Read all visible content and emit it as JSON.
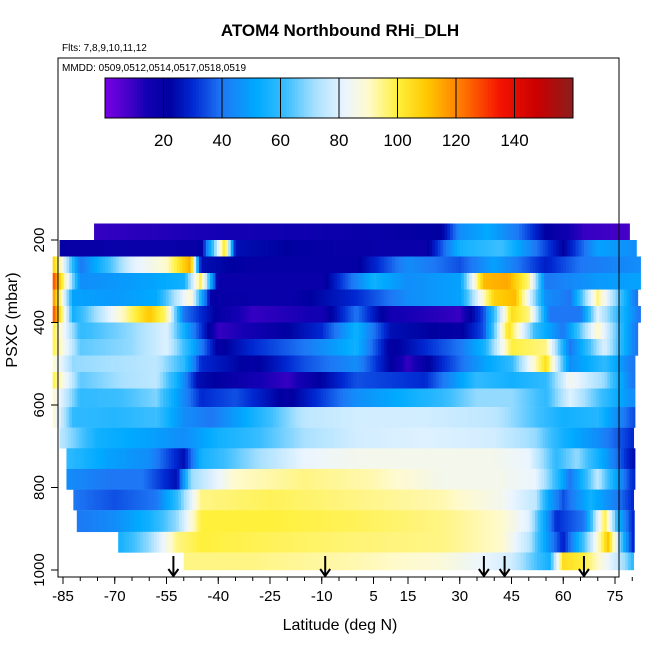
{
  "chart_data": {
    "type": "heatmap",
    "title": "ATOM4 Northbound RHi_DLH",
    "subtitle_flights": "Flts: 7,8,9,10,11,12",
    "subtitle_dates": "MMDD: 0509,0512,0514,0517,0518,0519",
    "xlabel": "Latitude (deg N)",
    "ylabel": "PSXC (mbar)",
    "xlim": [
      -88,
      84
    ],
    "ylim": [
      1010,
      110
    ],
    "x_ticks": [
      -85,
      -70,
      -55,
      -40,
      -25,
      -10,
      5,
      15,
      30,
      45,
      60,
      75
    ],
    "x_tick_labels": [
      "-85",
      "-70",
      "-55",
      "-40",
      "-25",
      "-10",
      "5",
      "15",
      "30",
      "45",
      "60",
      "75"
    ],
    "y_ticks": [
      200,
      400,
      600,
      800,
      1000
    ],
    "y_tick_labels": [
      "200",
      "400",
      "600",
      "800",
      "1000"
    ],
    "colorbar": {
      "range": [
        0,
        160
      ],
      "ticks": [
        20,
        40,
        60,
        80,
        100,
        120,
        140
      ],
      "tick_labels": [
        "20",
        "40",
        "60",
        "80",
        "100",
        "120",
        "140"
      ]
    },
    "arrow_latitudes": [
      -53,
      -9,
      37,
      43,
      66
    ],
    "layers": [
      {
        "p": 180,
        "xmin": -76,
        "xmax": 79,
        "knots": [
          [
            -76,
            10
          ],
          [
            -60,
            12
          ],
          [
            -30,
            15
          ],
          [
            0,
            18
          ],
          [
            25,
            22
          ],
          [
            30,
            45
          ],
          [
            38,
            52
          ],
          [
            47,
            40
          ],
          [
            55,
            22
          ],
          [
            66,
            10
          ],
          [
            79,
            8
          ]
        ]
      },
      {
        "p": 220,
        "xmin": -86,
        "xmax": 81,
        "knots": [
          [
            -86,
            20
          ],
          [
            -60,
            18
          ],
          [
            -45,
            20
          ],
          [
            -38,
            105
          ],
          [
            -35,
            25
          ],
          [
            -10,
            20
          ],
          [
            20,
            18
          ],
          [
            30,
            55
          ],
          [
            42,
            62
          ],
          [
            52,
            40
          ],
          [
            60,
            22
          ],
          [
            70,
            50
          ],
          [
            81,
            45
          ]
        ]
      },
      {
        "p": 260,
        "xmin": -88,
        "xmax": 82,
        "knots": [
          [
            -88,
            110
          ],
          [
            -80,
            40
          ],
          [
            -65,
            80
          ],
          [
            -55,
            90
          ],
          [
            -48,
            115
          ],
          [
            -45,
            25
          ],
          [
            -30,
            20
          ],
          [
            0,
            20
          ],
          [
            15,
            45
          ],
          [
            30,
            35
          ],
          [
            40,
            50
          ],
          [
            55,
            28
          ],
          [
            65,
            40
          ],
          [
            82,
            45
          ]
        ]
      },
      {
        "p": 300,
        "xmin": -88,
        "xmax": 82,
        "knots": [
          [
            -88,
            130
          ],
          [
            -80,
            45
          ],
          [
            -60,
            50
          ],
          [
            -50,
            55
          ],
          [
            -45,
            100
          ],
          [
            -40,
            18
          ],
          [
            -10,
            18
          ],
          [
            5,
            55
          ],
          [
            15,
            45
          ],
          [
            30,
            50
          ],
          [
            37,
            112
          ],
          [
            44,
            115
          ],
          [
            50,
            95
          ],
          [
            55,
            40
          ],
          [
            70,
            48
          ],
          [
            82,
            50
          ]
        ]
      },
      {
        "p": 340,
        "xmin": -88,
        "xmax": 81,
        "knots": [
          [
            -88,
            120
          ],
          [
            -82,
            50
          ],
          [
            -70,
            48
          ],
          [
            -58,
            52
          ],
          [
            -48,
            90
          ],
          [
            -42,
            20
          ],
          [
            -20,
            18
          ],
          [
            0,
            30
          ],
          [
            15,
            45
          ],
          [
            30,
            50
          ],
          [
            40,
            108
          ],
          [
            46,
            112
          ],
          [
            55,
            45
          ],
          [
            62,
            40
          ],
          [
            70,
            95
          ],
          [
            81,
            40
          ]
        ]
      },
      {
        "p": 380,
        "xmin": -88,
        "xmax": 82,
        "knots": [
          [
            -88,
            130
          ],
          [
            -82,
            55
          ],
          [
            -70,
            85
          ],
          [
            -60,
            110
          ],
          [
            -55,
            95
          ],
          [
            -50,
            40
          ],
          [
            -40,
            20
          ],
          [
            -30,
            10
          ],
          [
            -10,
            15
          ],
          [
            0,
            40
          ],
          [
            10,
            15
          ],
          [
            30,
            10
          ],
          [
            37,
            35
          ],
          [
            45,
            105
          ],
          [
            50,
            95
          ],
          [
            56,
            40
          ],
          [
            65,
            40
          ],
          [
            70,
            80
          ],
          [
            82,
            40
          ]
        ]
      },
      {
        "p": 420,
        "xmin": -88,
        "xmax": 81,
        "knots": [
          [
            -88,
            100
          ],
          [
            -80,
            60
          ],
          [
            -65,
            70
          ],
          [
            -55,
            80
          ],
          [
            -48,
            45
          ],
          [
            -40,
            10
          ],
          [
            -25,
            18
          ],
          [
            -10,
            30
          ],
          [
            0,
            55
          ],
          [
            10,
            25
          ],
          [
            30,
            20
          ],
          [
            37,
            35
          ],
          [
            44,
            105
          ],
          [
            52,
            60
          ],
          [
            60,
            40
          ],
          [
            70,
            90
          ],
          [
            81,
            40
          ]
        ]
      },
      {
        "p": 460,
        "xmin": -88,
        "xmax": 81,
        "knots": [
          [
            -88,
            100
          ],
          [
            -80,
            65
          ],
          [
            -65,
            70
          ],
          [
            -55,
            80
          ],
          [
            -48,
            55
          ],
          [
            -40,
            20
          ],
          [
            -30,
            30
          ],
          [
            -15,
            40
          ],
          [
            0,
            55
          ],
          [
            10,
            20
          ],
          [
            30,
            40
          ],
          [
            37,
            55
          ],
          [
            45,
            100
          ],
          [
            55,
            95
          ],
          [
            62,
            40
          ],
          [
            72,
            80
          ],
          [
            81,
            40
          ]
        ]
      },
      {
        "p": 500,
        "xmin": -88,
        "xmax": 80,
        "knots": [
          [
            -88,
            90
          ],
          [
            -82,
            70
          ],
          [
            -70,
            72
          ],
          [
            -58,
            75
          ],
          [
            -50,
            60
          ],
          [
            -45,
            30
          ],
          [
            -30,
            20
          ],
          [
            -15,
            35
          ],
          [
            0,
            45
          ],
          [
            15,
            10
          ],
          [
            25,
            30
          ],
          [
            37,
            50
          ],
          [
            45,
            60
          ],
          [
            55,
            105
          ],
          [
            62,
            45
          ],
          [
            72,
            60
          ],
          [
            80,
            40
          ]
        ]
      },
      {
        "p": 540,
        "xmin": -88,
        "xmax": 80,
        "knots": [
          [
            -88,
            100
          ],
          [
            -80,
            65
          ],
          [
            -68,
            72
          ],
          [
            -58,
            75
          ],
          [
            -52,
            55
          ],
          [
            -46,
            25
          ],
          [
            -35,
            18
          ],
          [
            -20,
            10
          ],
          [
            0,
            35
          ],
          [
            20,
            30
          ],
          [
            35,
            60
          ],
          [
            45,
            55
          ],
          [
            55,
            60
          ],
          [
            62,
            85
          ],
          [
            72,
            70
          ],
          [
            80,
            40
          ]
        ]
      },
      {
        "p": 580,
        "xmin": -88,
        "xmax": 80,
        "knots": [
          [
            -88,
            90
          ],
          [
            -80,
            60
          ],
          [
            -68,
            62
          ],
          [
            -58,
            68
          ],
          [
            -52,
            50
          ],
          [
            -45,
            30
          ],
          [
            -35,
            35
          ],
          [
            -20,
            20
          ],
          [
            0,
            45
          ],
          [
            25,
            60
          ],
          [
            35,
            70
          ],
          [
            45,
            70
          ],
          [
            55,
            60
          ],
          [
            62,
            80
          ],
          [
            72,
            60
          ],
          [
            80,
            45
          ]
        ]
      },
      {
        "p": 630,
        "xmin": -88,
        "xmax": 80,
        "knots": [
          [
            -88,
            90
          ],
          [
            -82,
            60
          ],
          [
            -70,
            58
          ],
          [
            -58,
            62
          ],
          [
            -50,
            45
          ],
          [
            -42,
            40
          ],
          [
            -30,
            55
          ],
          [
            -15,
            75
          ],
          [
            0,
            78
          ],
          [
            20,
            78
          ],
          [
            40,
            75
          ],
          [
            50,
            65
          ],
          [
            60,
            55
          ],
          [
            70,
            58
          ],
          [
            80,
            35
          ]
        ]
      },
      {
        "p": 680,
        "xmin": -86,
        "xmax": 80,
        "knots": [
          [
            -86,
            75
          ],
          [
            -75,
            55
          ],
          [
            -60,
            50
          ],
          [
            -50,
            45
          ],
          [
            -40,
            55
          ],
          [
            -30,
            60
          ],
          [
            -15,
            72
          ],
          [
            0,
            78
          ],
          [
            20,
            80
          ],
          [
            40,
            78
          ],
          [
            52,
            70
          ],
          [
            60,
            55
          ],
          [
            70,
            45
          ],
          [
            80,
            30
          ]
        ]
      },
      {
        "p": 730,
        "xmin": -84,
        "xmax": 80,
        "knots": [
          [
            -84,
            60
          ],
          [
            -72,
            50
          ],
          [
            -60,
            45
          ],
          [
            -50,
            25
          ],
          [
            -45,
            55
          ],
          [
            -30,
            70
          ],
          [
            -15,
            82
          ],
          [
            0,
            85
          ],
          [
            20,
            85
          ],
          [
            40,
            85
          ],
          [
            50,
            82
          ],
          [
            58,
            60
          ],
          [
            64,
            70
          ],
          [
            72,
            50
          ],
          [
            80,
            25
          ]
        ]
      },
      {
        "p": 780,
        "xmin": -84,
        "xmax": 80,
        "knots": [
          [
            -84,
            45
          ],
          [
            -72,
            40
          ],
          [
            -62,
            40
          ],
          [
            -52,
            25
          ],
          [
            -48,
            70
          ],
          [
            -35,
            90
          ],
          [
            -15,
            95
          ],
          [
            5,
            92
          ],
          [
            25,
            85
          ],
          [
            42,
            85
          ],
          [
            52,
            82
          ],
          [
            58,
            60
          ],
          [
            62,
            40
          ],
          [
            70,
            75
          ],
          [
            80,
            30
          ]
        ]
      },
      {
        "p": 830,
        "xmin": -82,
        "xmax": 80,
        "knots": [
          [
            -82,
            40
          ],
          [
            -70,
            35
          ],
          [
            -58,
            40
          ],
          [
            -52,
            60
          ],
          [
            -45,
            95
          ],
          [
            -25,
            98
          ],
          [
            0,
            95
          ],
          [
            25,
            92
          ],
          [
            42,
            85
          ],
          [
            52,
            75
          ],
          [
            56,
            50
          ],
          [
            60,
            35
          ],
          [
            68,
            55
          ],
          [
            76,
            40
          ],
          [
            80,
            30
          ]
        ]
      },
      {
        "p": 880,
        "xmin": -81,
        "xmax": 80,
        "knots": [
          [
            -81,
            40
          ],
          [
            -70,
            45
          ],
          [
            -60,
            55
          ],
          [
            -52,
            70
          ],
          [
            -45,
            100
          ],
          [
            -25,
            100
          ],
          [
            0,
            98
          ],
          [
            25,
            95
          ],
          [
            42,
            90
          ],
          [
            50,
            80
          ],
          [
            54,
            55
          ],
          [
            58,
            30
          ],
          [
            66,
            40
          ],
          [
            72,
            100
          ],
          [
            76,
            55
          ],
          [
            80,
            30
          ]
        ]
      },
      {
        "p": 935,
        "xmin": -69,
        "xmax": 80,
        "knots": [
          [
            -69,
            55
          ],
          [
            -60,
            70
          ],
          [
            -52,
            95
          ],
          [
            -45,
            100
          ],
          [
            -25,
            98
          ],
          [
            0,
            96
          ],
          [
            25,
            95
          ],
          [
            42,
            90
          ],
          [
            50,
            75
          ],
          [
            56,
            45
          ],
          [
            60,
            28
          ],
          [
            68,
            75
          ],
          [
            73,
            110
          ],
          [
            78,
            50
          ],
          [
            80,
            30
          ]
        ]
      },
      {
        "p": 980,
        "xmin": -50,
        "xmax": 80,
        "knots": [
          [
            -50,
            95
          ],
          [
            -30,
            95
          ],
          [
            0,
            92
          ],
          [
            25,
            88
          ],
          [
            45,
            78
          ],
          [
            56,
            55
          ],
          [
            60,
            105
          ],
          [
            66,
            100
          ],
          [
            72,
            85
          ],
          [
            78,
            70
          ],
          [
            80,
            60
          ]
        ]
      }
    ]
  }
}
